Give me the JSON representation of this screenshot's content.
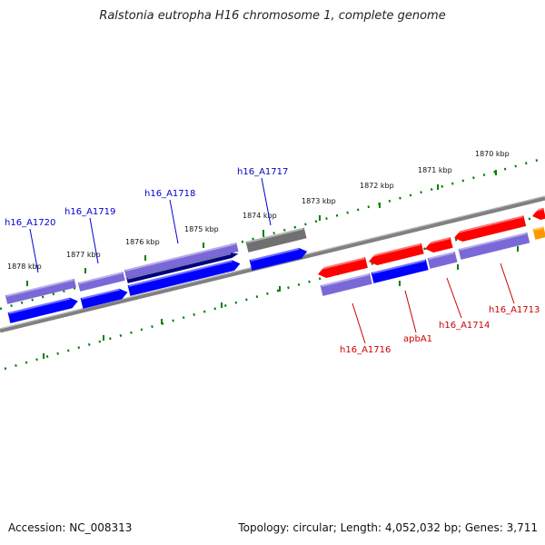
{
  "title": "Ralstonia eutropha H16 chromosome 1, complete genome",
  "accession": "Accession: NC_008313",
  "topology": "Topology: circular; Length: 4,052,032 bp; Genes: 3,711",
  "colors": {
    "plus_cds": "#0000ff",
    "plus_light": "#7b68d8",
    "plus_dark": "#000080",
    "minus_cds": "#ff0000",
    "grey_gene": "#707070",
    "orange_gene": "#ff9900",
    "backbone": "#808080",
    "ticks": "#008000",
    "label_plus": "#0000cc",
    "label_minus": "#cc0000"
  },
  "kbp_ticks": [
    "1878 kbp",
    "1877 kbp",
    "1876 kbp",
    "1875 kbp",
    "1874 kbp",
    "1873 kbp",
    "1872 kbp",
    "1871 kbp",
    "1870 kbp"
  ],
  "gene_labels_top": [
    "h16_A1720",
    "h16_A1719",
    "h16_A1718",
    "h16_A1717"
  ],
  "gene_labels_bottom": [
    "h16_A1716",
    "apbA1",
    "h16_A1714",
    "h16_A1713"
  ]
}
